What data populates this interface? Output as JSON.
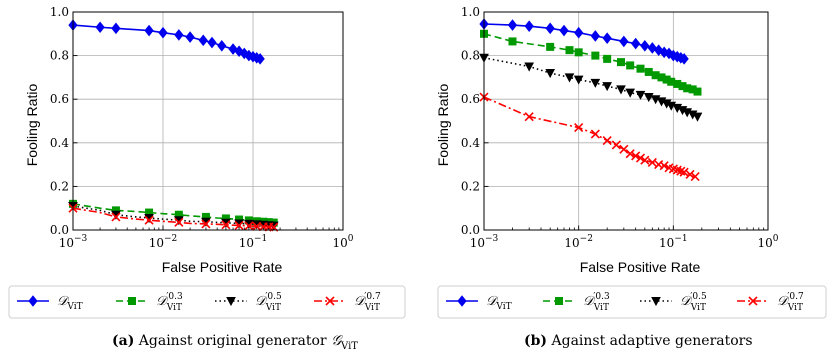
{
  "chart_data": [
    {
      "type": "line",
      "title": "",
      "xlabel": "False Positive Rate",
      "ylabel": "Fooling Ratio",
      "xscale": "log",
      "xlim": [
        0.001,
        1
      ],
      "ylim": [
        0,
        1
      ],
      "xticks": [
        "10^-3",
        "10^-2",
        "10^-1",
        "10^0"
      ],
      "yticks": [
        "0.0",
        "0.2",
        "0.4",
        "0.6",
        "0.8",
        "1.0"
      ],
      "grid": true,
      "legend_position": "below",
      "series": [
        {
          "name": "D_ViT",
          "sup": "",
          "color": "#0000ee",
          "line": "solid",
          "marker": "diamond",
          "marker_every": 1,
          "x": [
            0.001,
            0.002,
            0.003,
            0.007,
            0.01,
            0.015,
            0.02,
            0.028,
            0.035,
            0.045,
            0.06,
            0.07,
            0.08,
            0.09,
            0.1,
            0.11,
            0.12
          ],
          "y": [
            0.94,
            0.93,
            0.925,
            0.915,
            0.905,
            0.895,
            0.885,
            0.87,
            0.86,
            0.845,
            0.83,
            0.82,
            0.81,
            0.8,
            0.795,
            0.79,
            0.785
          ]
        },
        {
          "name": "D'_ViT",
          "sup": "0.3",
          "color": "#009900",
          "line": "dashed",
          "marker": "square",
          "marker_every": 2,
          "x": [
            0.001,
            0.002,
            0.003,
            0.005,
            0.007,
            0.01,
            0.015,
            0.02,
            0.03,
            0.04,
            0.05,
            0.06,
            0.07,
            0.08,
            0.09,
            0.1,
            0.11,
            0.12,
            0.13,
            0.14,
            0.15,
            0.16,
            0.17
          ],
          "y": [
            0.12,
            0.1,
            0.09,
            0.085,
            0.08,
            0.075,
            0.07,
            0.065,
            0.06,
            0.055,
            0.053,
            0.05,
            0.048,
            0.046,
            0.044,
            0.042,
            0.04,
            0.039,
            0.038,
            0.037,
            0.036,
            0.035,
            0.034
          ]
        },
        {
          "name": "D'_ViT",
          "sup": "0.5",
          "color": "#000000",
          "line": "dotted",
          "marker": "triangle-down",
          "marker_every": 2,
          "x": [
            0.001,
            0.002,
            0.003,
            0.005,
            0.007,
            0.01,
            0.015,
            0.02,
            0.03,
            0.04,
            0.05,
            0.06,
            0.07,
            0.08,
            0.09,
            0.1,
            0.11,
            0.12,
            0.13,
            0.14,
            0.15,
            0.16,
            0.17
          ],
          "y": [
            0.11,
            0.09,
            0.07,
            0.06,
            0.055,
            0.05,
            0.045,
            0.04,
            0.038,
            0.035,
            0.033,
            0.031,
            0.03,
            0.029,
            0.028,
            0.027,
            0.026,
            0.025,
            0.024,
            0.023,
            0.022,
            0.021,
            0.02
          ]
        },
        {
          "name": "D'_ViT",
          "sup": "0.7",
          "color": "#ff0000",
          "line": "dashdot",
          "marker": "x",
          "marker_every": 2,
          "x": [
            0.001,
            0.002,
            0.003,
            0.005,
            0.007,
            0.01,
            0.015,
            0.02,
            0.03,
            0.04,
            0.05,
            0.06,
            0.07,
            0.08,
            0.09,
            0.1,
            0.11,
            0.12,
            0.13,
            0.14,
            0.15,
            0.16,
            0.17
          ],
          "y": [
            0.1,
            0.08,
            0.06,
            0.05,
            0.045,
            0.04,
            0.035,
            0.03,
            0.028,
            0.026,
            0.024,
            0.022,
            0.021,
            0.02,
            0.019,
            0.018,
            0.017,
            0.016,
            0.015,
            0.015,
            0.014,
            0.014,
            0.013
          ]
        }
      ]
    },
    {
      "type": "line",
      "title": "",
      "xlabel": "False Positive Rate",
      "ylabel": "Fooling Ratio",
      "xscale": "log",
      "xlim": [
        0.001,
        1
      ],
      "ylim": [
        0,
        1
      ],
      "xticks": [
        "10^-3",
        "10^-2",
        "10^-1",
        "10^0"
      ],
      "yticks": [
        "0.0",
        "0.2",
        "0.4",
        "0.6",
        "0.8",
        "1.0"
      ],
      "grid": true,
      "legend_position": "below",
      "series": [
        {
          "name": "D_ViT",
          "sup": "",
          "color": "#0000ee",
          "line": "solid",
          "marker": "diamond",
          "marker_every": 1,
          "x": [
            0.001,
            0.002,
            0.003,
            0.005,
            0.007,
            0.01,
            0.015,
            0.02,
            0.03,
            0.04,
            0.05,
            0.06,
            0.07,
            0.08,
            0.09,
            0.1,
            0.11,
            0.12,
            0.13
          ],
          "y": [
            0.945,
            0.94,
            0.935,
            0.925,
            0.915,
            0.905,
            0.89,
            0.88,
            0.865,
            0.855,
            0.845,
            0.835,
            0.825,
            0.815,
            0.81,
            0.8,
            0.795,
            0.79,
            0.785
          ]
        },
        {
          "name": "D'_ViT",
          "sup": "0.3",
          "color": "#009900",
          "line": "dashed",
          "marker": "square",
          "marker_every": 1,
          "x": [
            0.001,
            0.002,
            0.005,
            0.008,
            0.01,
            0.015,
            0.02,
            0.028,
            0.035,
            0.045,
            0.055,
            0.065,
            0.075,
            0.085,
            0.095,
            0.11,
            0.125,
            0.14,
            0.16,
            0.18
          ],
          "y": [
            0.9,
            0.865,
            0.84,
            0.825,
            0.815,
            0.8,
            0.785,
            0.77,
            0.755,
            0.74,
            0.725,
            0.71,
            0.7,
            0.69,
            0.68,
            0.67,
            0.66,
            0.65,
            0.645,
            0.635
          ]
        },
        {
          "name": "D'_ViT",
          "sup": "0.5",
          "color": "#000000",
          "line": "dotted",
          "marker": "triangle-down",
          "marker_every": 1,
          "x": [
            0.001,
            0.003,
            0.005,
            0.008,
            0.01,
            0.015,
            0.02,
            0.028,
            0.035,
            0.045,
            0.055,
            0.065,
            0.075,
            0.085,
            0.095,
            0.11,
            0.125,
            0.14,
            0.16,
            0.18
          ],
          "y": [
            0.79,
            0.75,
            0.72,
            0.7,
            0.69,
            0.675,
            0.66,
            0.645,
            0.63,
            0.62,
            0.61,
            0.6,
            0.59,
            0.58,
            0.57,
            0.56,
            0.55,
            0.54,
            0.53,
            0.52
          ]
        },
        {
          "name": "D'_ViT",
          "sup": "0.7",
          "color": "#ff0000",
          "line": "dashdot",
          "marker": "x",
          "marker_every": 1,
          "x": [
            0.001,
            0.003,
            0.01,
            0.015,
            0.02,
            0.025,
            0.03,
            0.035,
            0.04,
            0.045,
            0.05,
            0.06,
            0.07,
            0.08,
            0.09,
            0.1,
            0.11,
            0.12,
            0.13,
            0.15,
            0.17
          ],
          "y": [
            0.61,
            0.52,
            0.47,
            0.44,
            0.41,
            0.39,
            0.37,
            0.35,
            0.34,
            0.33,
            0.32,
            0.31,
            0.3,
            0.295,
            0.285,
            0.28,
            0.275,
            0.27,
            0.265,
            0.255,
            0.245
          ]
        }
      ]
    }
  ],
  "captions": [
    {
      "label": "(a)",
      "text": "Against original generator",
      "math": "G_ViT"
    },
    {
      "label": "(b)",
      "text": "Against adaptive generators",
      "math": ""
    }
  ]
}
